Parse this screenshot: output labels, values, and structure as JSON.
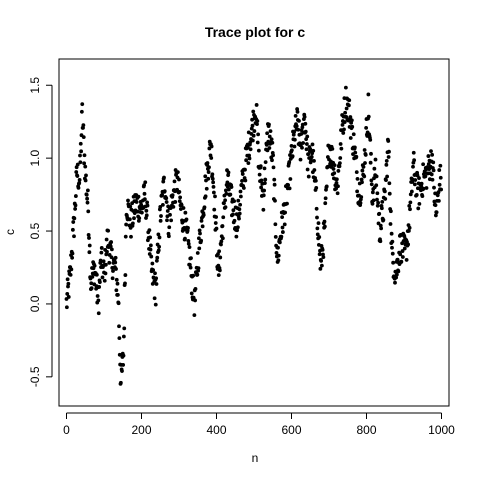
{
  "chart_data": {
    "type": "scatter",
    "title": "Trace plot for c",
    "xlabel": "n",
    "ylabel": "c",
    "xlim": [
      -20,
      1020
    ],
    "ylim": [
      -0.7,
      1.68
    ],
    "xticks": [
      0,
      200,
      400,
      600,
      800,
      1000
    ],
    "yticks": [
      -0.5,
      0.0,
      0.5,
      1.0,
      1.5
    ],
    "ytick_labels": [
      "-0.5",
      "0.0",
      "0.5",
      "1.0",
      "1.5"
    ],
    "grid": false,
    "legend": "none",
    "point_color": "#000000",
    "anchor_segments": [
      [
        0,
        0.0
      ],
      [
        10,
        0.2
      ],
      [
        20,
        0.55
      ],
      [
        28,
        0.9
      ],
      [
        35,
        0.85
      ],
      [
        42,
        1.3
      ],
      [
        50,
        0.9
      ],
      [
        58,
        0.65
      ],
      [
        65,
        0.15
      ],
      [
        75,
        0.25
      ],
      [
        85,
        0.0
      ],
      [
        92,
        0.3
      ],
      [
        100,
        0.2
      ],
      [
        110,
        0.45
      ],
      [
        120,
        0.3
      ],
      [
        130,
        0.25
      ],
      [
        138,
        0.05
      ],
      [
        145,
        -0.55
      ],
      [
        152,
        -0.35
      ],
      [
        160,
        0.7
      ],
      [
        172,
        0.55
      ],
      [
        185,
        0.7
      ],
      [
        200,
        0.65
      ],
      [
        210,
        0.75
      ],
      [
        220,
        0.45
      ],
      [
        228,
        0.2
      ],
      [
        238,
        0.1
      ],
      [
        250,
        0.6
      ],
      [
        262,
        0.85
      ],
      [
        272,
        0.55
      ],
      [
        285,
        0.75
      ],
      [
        295,
        0.85
      ],
      [
        305,
        0.65
      ],
      [
        315,
        0.55
      ],
      [
        325,
        0.4
      ],
      [
        335,
        0.15
      ],
      [
        342,
        0.0
      ],
      [
        350,
        0.3
      ],
      [
        360,
        0.55
      ],
      [
        372,
        0.85
      ],
      [
        385,
        1.1
      ],
      [
        395,
        0.7
      ],
      [
        405,
        0.2
      ],
      [
        415,
        0.5
      ],
      [
        428,
        0.85
      ],
      [
        440,
        0.7
      ],
      [
        455,
        0.55
      ],
      [
        468,
        0.8
      ],
      [
        480,
        1.0
      ],
      [
        495,
        1.2
      ],
      [
        505,
        1.35
      ],
      [
        515,
        0.9
      ],
      [
        525,
        0.75
      ],
      [
        538,
        1.2
      ],
      [
        550,
        1.0
      ],
      [
        562,
        0.3
      ],
      [
        572,
        0.5
      ],
      [
        585,
        0.7
      ],
      [
        595,
        0.9
      ],
      [
        605,
        1.1
      ],
      [
        615,
        1.25
      ],
      [
        625,
        1.05
      ],
      [
        635,
        1.3
      ],
      [
        645,
        0.95
      ],
      [
        655,
        1.05
      ],
      [
        668,
        0.65
      ],
      [
        678,
        0.25
      ],
      [
        688,
        0.5
      ],
      [
        700,
        1.1
      ],
      [
        712,
        0.95
      ],
      [
        722,
        0.8
      ],
      [
        735,
        1.2
      ],
      [
        745,
        1.4
      ],
      [
        755,
        1.3
      ],
      [
        768,
        1.05
      ],
      [
        780,
        0.75
      ],
      [
        792,
        0.9
      ],
      [
        805,
        1.35
      ],
      [
        815,
        0.75
      ],
      [
        825,
        0.9
      ],
      [
        835,
        0.5
      ],
      [
        848,
        0.7
      ],
      [
        858,
        1.1
      ],
      [
        868,
        0.35
      ],
      [
        878,
        0.2
      ],
      [
        890,
        0.4
      ],
      [
        905,
        0.35
      ],
      [
        915,
        0.6
      ],
      [
        925,
        0.95
      ],
      [
        938,
        0.75
      ],
      [
        950,
        0.85
      ],
      [
        962,
        0.9
      ],
      [
        975,
        1.0
      ],
      [
        985,
        0.6
      ],
      [
        995,
        0.85
      ]
    ],
    "n_points": 1000
  }
}
